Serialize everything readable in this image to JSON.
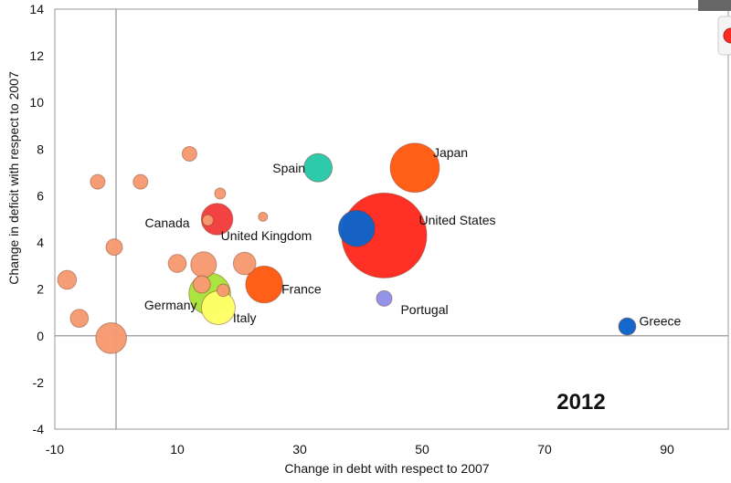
{
  "chart_data": {
    "type": "scatter",
    "subtype": "bubble",
    "year_label": "2012",
    "xlabel": "Change in debt with respect to 2007",
    "ylabel": "Change in deficit with respect to 2007",
    "xlim": [
      -10,
      100
    ],
    "ylim": [
      -4,
      14
    ],
    "x_ticks": [
      "-10",
      "10",
      "30",
      "50",
      "70",
      "90"
    ],
    "y_ticks": [
      "14",
      "12",
      "10",
      "8",
      "6",
      "4",
      "2",
      "0",
      "-2",
      "-4"
    ],
    "reference_lines": {
      "x": 0,
      "y": 0
    },
    "points": [
      {
        "label": "Spain",
        "x": 33,
        "y": 7.2,
        "size": 1.4,
        "color": "#26c9a8"
      },
      {
        "label": "Japan",
        "x": 48.8,
        "y": 7.2,
        "size": 4.9,
        "color": "#ff5a10"
      },
      {
        "label": "Canada",
        "x": 16.5,
        "y": 5.0,
        "size": 1.8,
        "color": "#f23c3c"
      },
      {
        "label": "United Kingdom",
        "x": 39.3,
        "y": 4.6,
        "size": 2.5,
        "color": "#0d63c9"
      },
      {
        "label": "United States",
        "x": 43.8,
        "y": 4.3,
        "size": 16.0,
        "color": "#ff2a20"
      },
      {
        "label": "France",
        "x": 24.2,
        "y": 2.2,
        "size": 2.6,
        "color": "#ff5a10"
      },
      {
        "label": "Germany",
        "x": 15.3,
        "y": 1.8,
        "size": 3.4,
        "color": "#a8e23a"
      },
      {
        "label": "Italy",
        "x": 16.7,
        "y": 1.2,
        "size": 2.1,
        "color": "#ffff66"
      },
      {
        "label": "Portugal",
        "x": 43.8,
        "y": 1.6,
        "size": 0.3,
        "color": "#8f8fe8"
      },
      {
        "label": "Greece",
        "x": 83.5,
        "y": 0.4,
        "size": 0.4,
        "color": "#0d63c9"
      },
      {
        "label": "",
        "x": 12,
        "y": 7.8,
        "size": 0.25,
        "color": "#f79a72"
      },
      {
        "label": "",
        "x": -3,
        "y": 6.6,
        "size": 0.25,
        "color": "#f79a72"
      },
      {
        "label": "",
        "x": 4,
        "y": 6.6,
        "size": 0.25,
        "color": "#f79a72"
      },
      {
        "label": "",
        "x": 17,
        "y": 6.1,
        "size": 0.1,
        "color": "#f79a72"
      },
      {
        "label": "",
        "x": 24,
        "y": 5.1,
        "size": 0.05,
        "color": "#f79a72"
      },
      {
        "label": "",
        "x": 15,
        "y": 4.95,
        "size": 0.1,
        "color": "#f79a72"
      },
      {
        "label": "",
        "x": -0.3,
        "y": 3.8,
        "size": 0.35,
        "color": "#f79a72"
      },
      {
        "label": "",
        "x": 10,
        "y": 3.1,
        "size": 0.45,
        "color": "#f79a72"
      },
      {
        "label": "",
        "x": 14.3,
        "y": 3.05,
        "size": 1.1,
        "color": "#f79a72"
      },
      {
        "label": "",
        "x": 21,
        "y": 3.1,
        "size": 0.8,
        "color": "#f79a72"
      },
      {
        "label": "",
        "x": -8,
        "y": 2.4,
        "size": 0.5,
        "color": "#f79a72"
      },
      {
        "label": "",
        "x": 14,
        "y": 2.2,
        "size": 0.4,
        "color": "#f79a72"
      },
      {
        "label": "",
        "x": 17.5,
        "y": 1.95,
        "size": 0.15,
        "color": "#f79a72"
      },
      {
        "label": "",
        "x": -6,
        "y": 0.75,
        "size": 0.45,
        "color": "#f79a72"
      },
      {
        "label": "",
        "x": -0.8,
        "y": -0.1,
        "size": 1.7,
        "color": "#f79a72"
      }
    ]
  },
  "legend_bubble_color": "#ff2a20"
}
